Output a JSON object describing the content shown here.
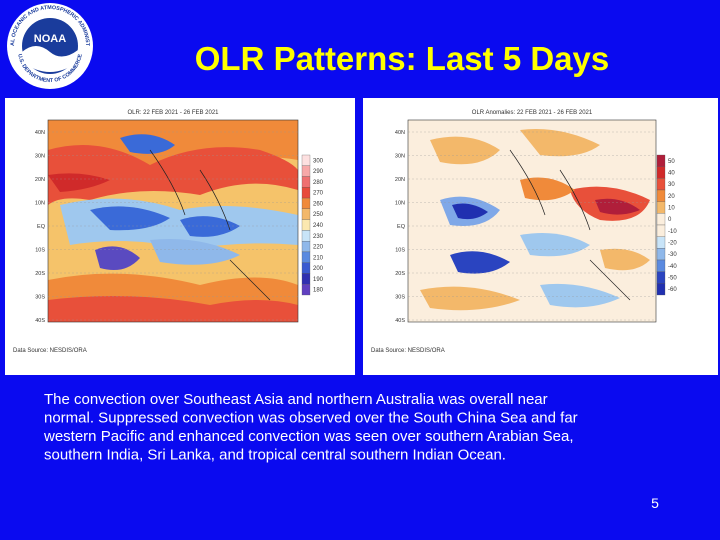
{
  "logo": {
    "name": "NOAA",
    "ring_top": "NATIONAL OCEANIC AND ATMOSPHERIC ADMINISTRATION",
    "ring_bottom": "U.S. DEPARTMENT OF COMMERCE"
  },
  "title": "OLR Patterns: Last 5 Days",
  "maps": [
    {
      "title": "OLR: 22 FEB 2021 - 26 FEB 2021",
      "lat_labels": [
        "40N",
        "30N",
        "20N",
        "10N",
        "EQ",
        "10S",
        "20S",
        "30S",
        "40S"
      ],
      "colorbar_labels": [
        "300",
        "290",
        "280",
        "270",
        "260",
        "250",
        "240",
        "230",
        "220",
        "210",
        "200",
        "190",
        "180"
      ],
      "source": "Data Source: NESDIS/ORA"
    },
    {
      "title": "OLR Anomalies: 22 FEB 2021 - 26 FEB 2021",
      "lat_labels": [
        "40N",
        "30N",
        "20N",
        "10N",
        "EQ",
        "10S",
        "20S",
        "30S",
        "40S"
      ],
      "colorbar_labels": [
        "50",
        "40",
        "30",
        "20",
        "10",
        "0",
        "-10",
        "-20",
        "-30",
        "-40",
        "-50",
        "-60"
      ],
      "source": "Data Source: NESDIS/ORA"
    }
  ],
  "body": [
    "The convection over Southeast Asia and northern Australia was overall near",
    "normal. Suppressed convection was observed over the South China Sea and far",
    "western Pacific and enhanced convection was seen over southern Arabian Sea,",
    "southern India, Sri Lanka, and tropical central southern Indian Ocean."
  ],
  "page_number": "5"
}
